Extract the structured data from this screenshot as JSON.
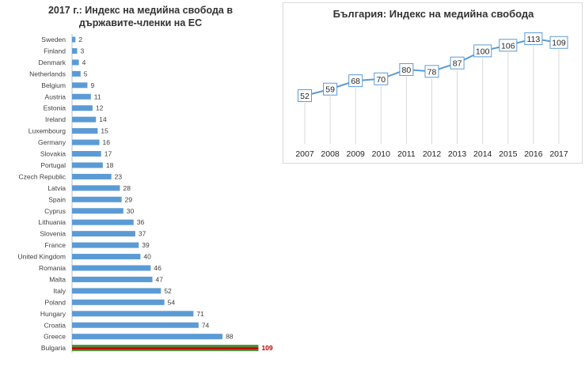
{
  "chart_data": [
    {
      "type": "bar",
      "orientation": "horizontal",
      "title_line1": "2017 г.: Индекс на медийна свобода в",
      "title_line2": "държавите-членки на ЕС",
      "categories": [
        "Sweden",
        "Finland",
        "Denmark",
        "Netherlands",
        "Belgium",
        "Austria",
        "Estonia",
        "Ireland",
        "Luxembourg",
        "Germany",
        "Slovakia",
        "Portugal",
        "Czech Republic",
        "Latvia",
        "Spain",
        "Cyprus",
        "Lithuania",
        "Slovenia",
        "France",
        "United Kingdom",
        "Romania",
        "Malta",
        "Italy",
        "Poland",
        "Hungary",
        "Croatia",
        "Greece",
        "Bulgaria"
      ],
      "values": [
        2,
        3,
        4,
        5,
        9,
        11,
        12,
        14,
        15,
        16,
        17,
        18,
        23,
        28,
        29,
        30,
        36,
        37,
        39,
        40,
        46,
        47,
        52,
        54,
        71,
        74,
        88,
        109
      ],
      "highlight": {
        "category": "Bulgaria",
        "label": "109",
        "color": "#c00000"
      },
      "bar_color": "#5b9bd5",
      "grid": false,
      "legend": "none"
    },
    {
      "type": "line",
      "title": "България: Индекс на медийна свобода",
      "x": [
        "2007",
        "2008",
        "2009",
        "2010",
        "2011",
        "2012",
        "2013",
        "2014",
        "2015",
        "2016",
        "2017"
      ],
      "values": [
        52,
        59,
        68,
        70,
        80,
        78,
        87,
        100,
        106,
        113,
        109
      ],
      "line_color": "#5b9bd5",
      "grid": "vertical",
      "legend": "none"
    }
  ]
}
